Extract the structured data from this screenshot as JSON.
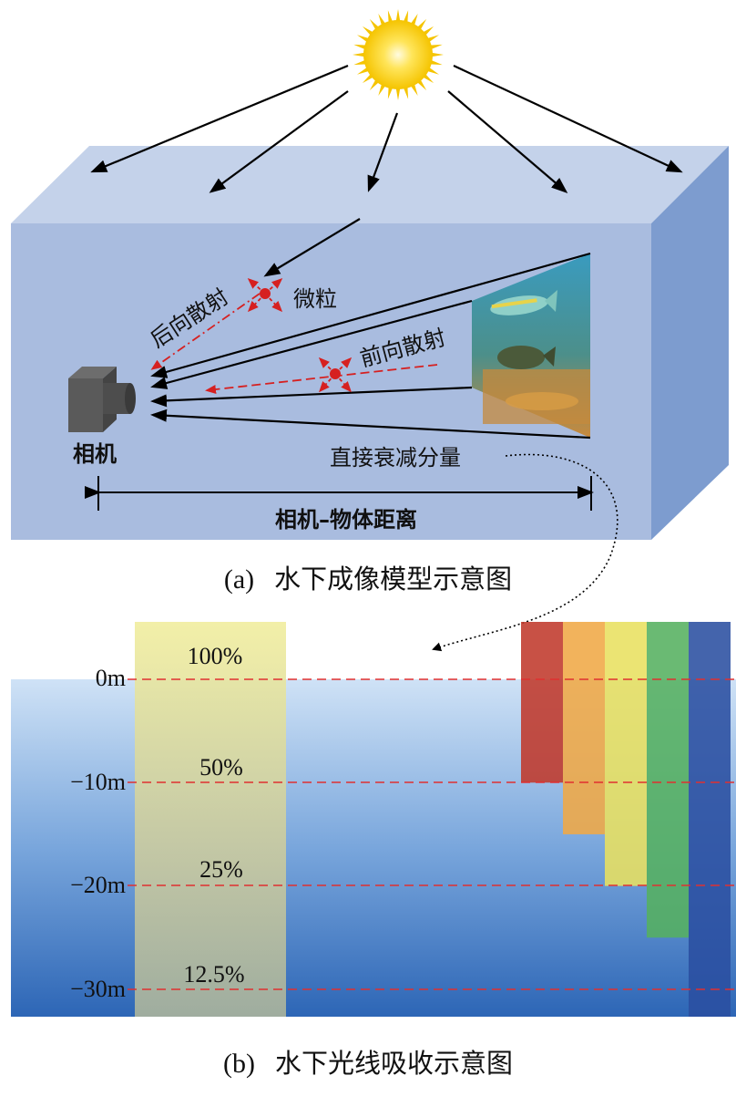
{
  "part_a": {
    "caption_tag": "(a)",
    "caption_title": "水下成像模型示意图",
    "labels": {
      "backscatter": "后向散射",
      "particle": "微粒",
      "forward_scatter": "前向散射",
      "camera": "相机",
      "direct_component": "直接衰减分量",
      "distance": "相机–物体距离"
    }
  },
  "part_b": {
    "caption_tag": "(b)",
    "caption_title": "水下光线吸收示意图",
    "depth_labels": [
      "0m",
      "−10m",
      "−20m",
      "−30m"
    ],
    "intensity_labels": [
      "100%",
      "50%",
      "25%",
      "12.5%"
    ],
    "color_bars": [
      {
        "color": "#c0392b",
        "depth_m": 10
      },
      {
        "color": "#f0a845",
        "depth_m": 15
      },
      {
        "color": "#e8e060",
        "depth_m": 20
      },
      {
        "color": "#55b060",
        "depth_m": 25
      },
      {
        "color": "#2a4ea0",
        "depth_m": 33
      }
    ]
  },
  "colors": {
    "tank_front": "#a9bcdf",
    "tank_top": "#c4d2ea",
    "tank_side": "#7d9ccf",
    "sun": "#ffd21a",
    "scatter_red": "#d62020"
  }
}
